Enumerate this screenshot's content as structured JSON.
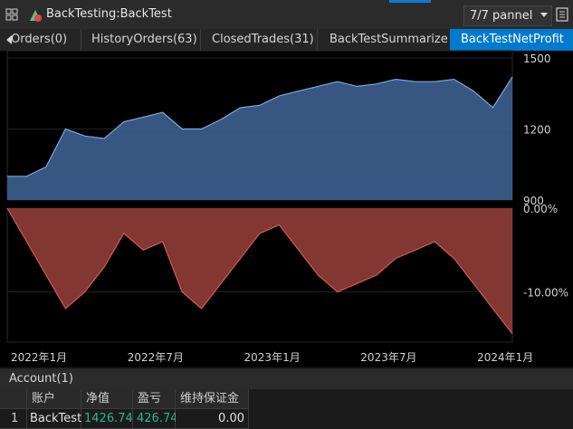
{
  "window": {
    "title": "BackTesting:BackTest",
    "panel_select": "7/7 pannel"
  },
  "tabs": [
    {
      "label": "Orders(0)",
      "partial_text": "Orders(0)"
    },
    {
      "label": "HistoryOrders(63)"
    },
    {
      "label": "ClosedTrades(31)"
    },
    {
      "label": "BackTestSummarize"
    },
    {
      "label": "BackTestNetProfit",
      "active": true
    }
  ],
  "icons": {
    "tab_scroll_left": "chevron-left-icon",
    "app": "app-logo-icon",
    "select_arrow": "chevron-down-icon",
    "document": "document-icon"
  },
  "colors": {
    "equity_fill": "#3d5f8f",
    "equity_line": "#7ea8de",
    "drawdown_fill": "#8a3a36",
    "drawdown_line": "#d25a52",
    "active_tab": "#007acc",
    "positive_value": "#2fb38f"
  },
  "chart_data": [
    {
      "type": "area",
      "name": "equity",
      "y_ticks": [
        "1500",
        "1200",
        "900"
      ],
      "ylim": [
        900,
        1500
      ],
      "x": [
        "2022-01",
        "2022-02",
        "2022-03",
        "2022-04",
        "2022-05",
        "2022-06",
        "2022-07",
        "2022-08",
        "2022-09",
        "2022-10",
        "2022-11",
        "2022-12",
        "2023-01",
        "2023-02",
        "2023-03",
        "2023-04",
        "2023-05",
        "2023-06",
        "2023-07",
        "2023-08",
        "2023-09",
        "2023-10",
        "2023-11",
        "2023-12",
        "2024-01",
        "2024-02",
        "2024-03"
      ],
      "values": [
        1000,
        1000,
        1040,
        1200,
        1170,
        1160,
        1230,
        1250,
        1270,
        1200,
        1200,
        1240,
        1290,
        1300,
        1340,
        1360,
        1380,
        1400,
        1380,
        1390,
        1410,
        1400,
        1400,
        1410,
        1360,
        1290,
        1420
      ]
    },
    {
      "type": "area",
      "name": "drawdown",
      "y_ticks": [
        "0.00%",
        "-10.00%"
      ],
      "ylim": [
        -16,
        0
      ],
      "x": [
        "2022-01",
        "2022-02",
        "2022-03",
        "2022-04",
        "2022-05",
        "2022-06",
        "2022-07",
        "2022-08",
        "2022-09",
        "2022-10",
        "2022-11",
        "2022-12",
        "2023-01",
        "2023-02",
        "2023-03",
        "2023-04",
        "2023-05",
        "2023-06",
        "2023-07",
        "2023-08",
        "2023-09",
        "2023-10",
        "2023-11",
        "2023-12",
        "2024-01",
        "2024-02",
        "2024-03"
      ],
      "values": [
        0,
        -4,
        -8,
        -12,
        -10,
        -7,
        -3,
        -5,
        -4,
        -10,
        -12,
        -9,
        -6,
        -3,
        -2,
        -5,
        -8,
        -10,
        -9,
        -8,
        -6,
        -5,
        -4,
        -6,
        -9,
        -12,
        -15
      ],
      "x_tick_labels": [
        "2022年1月",
        "2022年7月",
        "2023年1月",
        "2023年7月",
        "2024年1月"
      ]
    }
  ],
  "account": {
    "title": "Account(1)",
    "columns": [
      "账户",
      "净值",
      "盈亏",
      "维持保证金"
    ],
    "rows": [
      {
        "index": "1",
        "account": "BackTest",
        "equity": "1426.74",
        "pnl": "426.74",
        "margin": "0.00"
      }
    ]
  }
}
